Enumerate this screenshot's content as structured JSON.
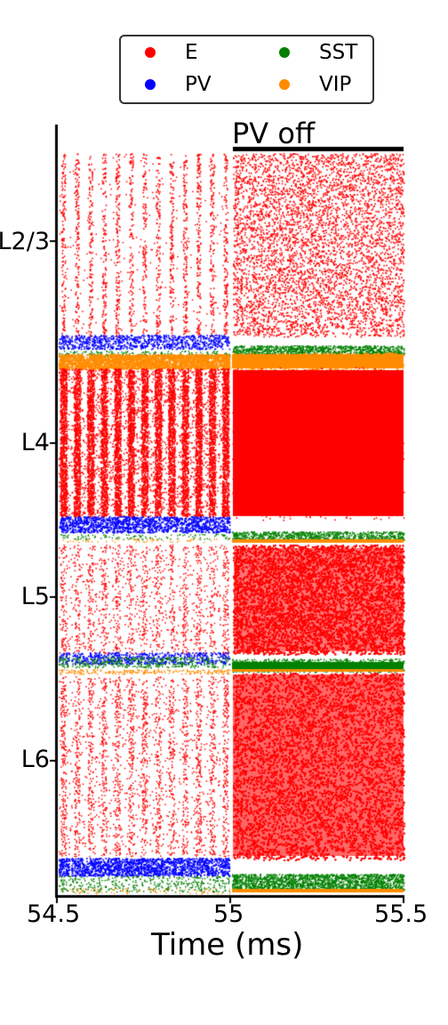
{
  "chart_data": {
    "type": "scatter",
    "subtype": "raster",
    "xlabel": "Time (ms)",
    "xlim": [
      54.5,
      55.5
    ],
    "xticks": [
      {
        "value": 54.5,
        "label": "54.5"
      },
      {
        "value": 55.0,
        "label": "55"
      },
      {
        "value": 55.5,
        "label": "55.5"
      }
    ],
    "ylabel": "",
    "yticks": [
      {
        "label": "L2/3",
        "layer": "L2/3"
      },
      {
        "label": "L4",
        "layer": "L4"
      },
      {
        "label": "L5",
        "layer": "L5"
      },
      {
        "label": "L6",
        "layer": "L6"
      }
    ],
    "annotation": {
      "text": "PV off",
      "x_start": 55.0,
      "x_end": 55.5
    },
    "legend": {
      "placement": "top",
      "entries": [
        {
          "name": "E",
          "color": "#ff0000"
        },
        {
          "name": "PV",
          "color": "#0000ff"
        },
        {
          "name": "SST",
          "color": "#008000"
        },
        {
          "name": "VIP",
          "color": "#ff8c00"
        }
      ]
    },
    "series": [
      {
        "name": "E",
        "color": "#ff0000"
      },
      {
        "name": "PV",
        "color": "#0000ff"
      },
      {
        "name": "SST",
        "color": "#008000"
      },
      {
        "name": "VIP",
        "color": "#ff8c00"
      }
    ],
    "grid": false
  }
}
